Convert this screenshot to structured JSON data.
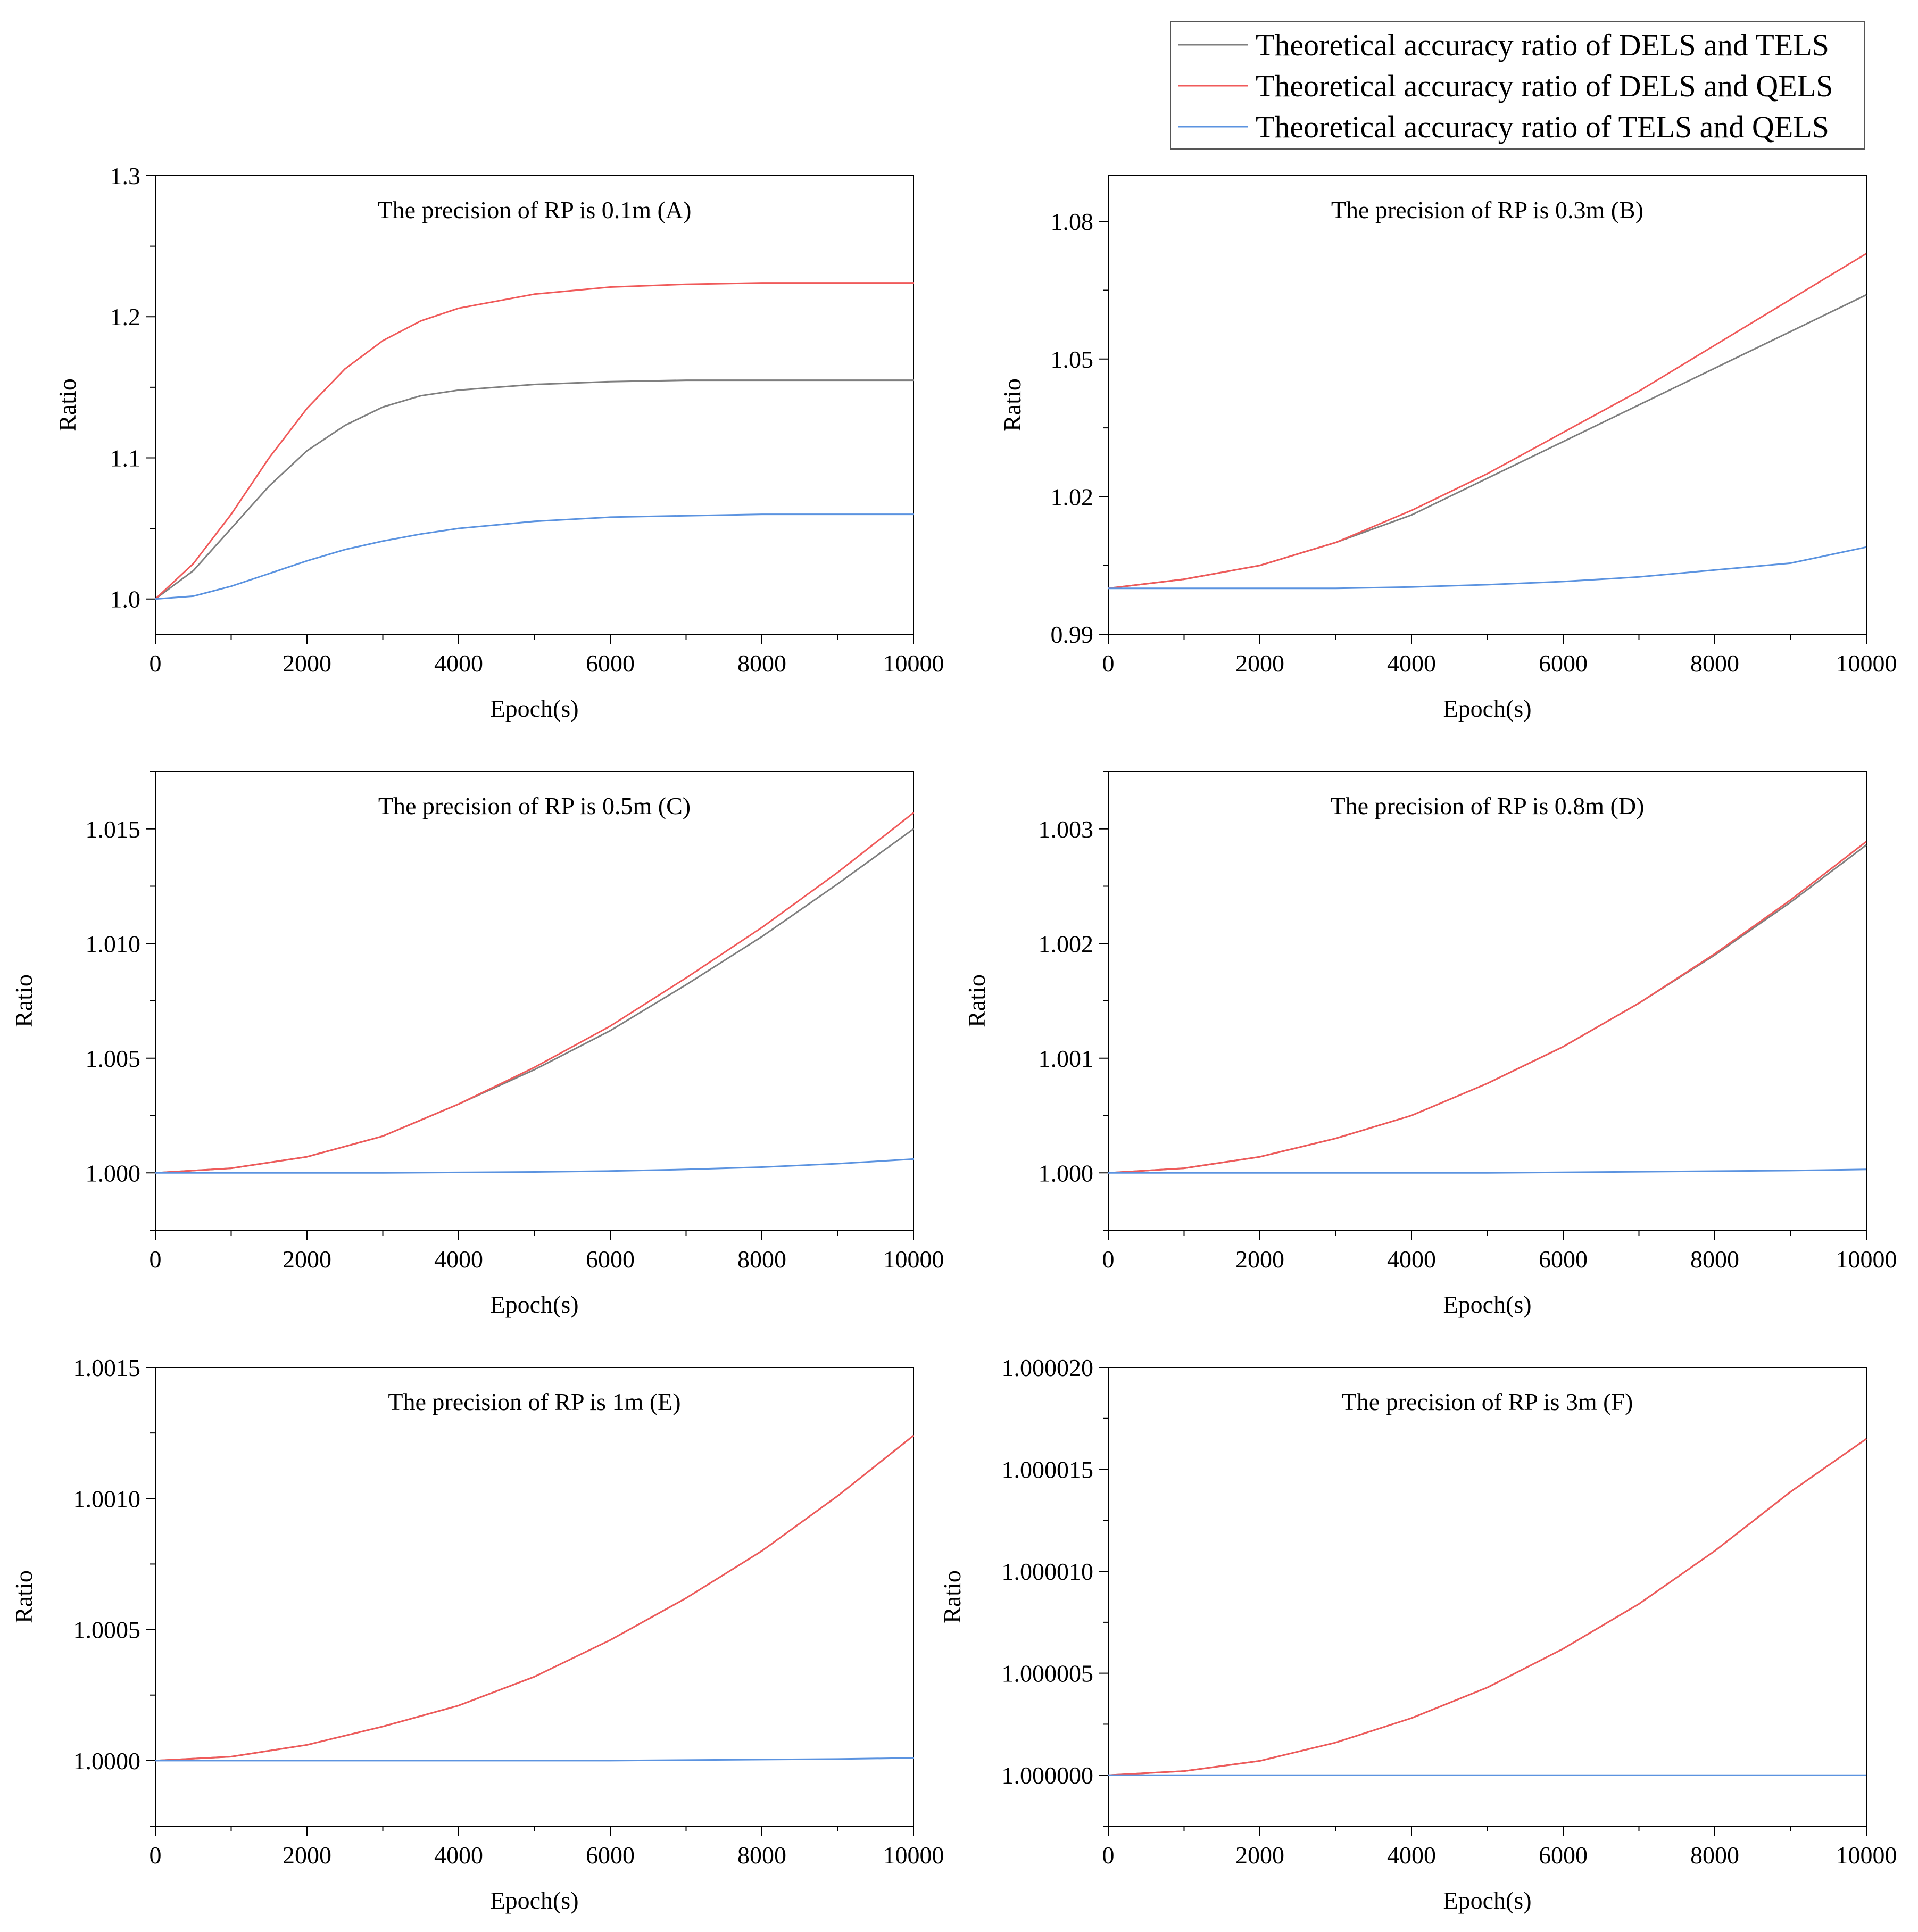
{
  "legend": {
    "entries": [
      {
        "label": "Theoretical accuracy ratio of DELS and TELS",
        "color": "#7f7f7f"
      },
      {
        "label": "Theoretical accuracy ratio of DELS and QELS",
        "color": "#f05a5a"
      },
      {
        "label": "Theoretical accuracy ratio of TELS and QELS",
        "color": "#5b93e0"
      }
    ]
  },
  "chart_data": [
    {
      "panel": "A",
      "type": "line",
      "title": "The precision of RP is 0.1m (A)",
      "xlabel": "Epoch(s)",
      "ylabel": "Ratio",
      "xlim": [
        0,
        10000
      ],
      "ylim": [
        0.975,
        1.3
      ],
      "xticks": [
        0,
        2000,
        4000,
        6000,
        8000,
        10000
      ],
      "xtick_labels": [
        "0",
        "2000",
        "4000",
        "6000",
        "8000",
        "10000"
      ],
      "yticks": [
        1.0,
        1.1,
        1.2,
        1.3
      ],
      "ytick_labels": [
        "1.0",
        "1.1",
        "1.2",
        "1.3"
      ],
      "x": [
        0,
        500,
        1000,
        1500,
        2000,
        2500,
        3000,
        3500,
        4000,
        5000,
        6000,
        7000,
        8000,
        9000,
        10000
      ],
      "series": [
        {
          "name": "DELS/TELS",
          "values": [
            1.0,
            1.02,
            1.05,
            1.08,
            1.105,
            1.123,
            1.136,
            1.144,
            1.148,
            1.152,
            1.154,
            1.155,
            1.155,
            1.155,
            1.155
          ]
        },
        {
          "name": "DELS/QELS",
          "values": [
            1.0,
            1.025,
            1.06,
            1.1,
            1.135,
            1.163,
            1.183,
            1.197,
            1.206,
            1.216,
            1.221,
            1.223,
            1.224,
            1.224,
            1.224
          ]
        },
        {
          "name": "TELS/QELS",
          "values": [
            1.0,
            1.002,
            1.009,
            1.018,
            1.027,
            1.035,
            1.041,
            1.046,
            1.05,
            1.055,
            1.058,
            1.059,
            1.06,
            1.06,
            1.06
          ]
        }
      ]
    },
    {
      "panel": "B",
      "type": "line",
      "title": "The precision of RP is 0.3m (B)",
      "xlabel": "Epoch(s)",
      "ylabel": "Ratio",
      "xlim": [
        0,
        10000
      ],
      "ylim": [
        0.99,
        1.09
      ],
      "xticks": [
        0,
        2000,
        4000,
        6000,
        8000,
        10000
      ],
      "xtick_labels": [
        "0",
        "2000",
        "4000",
        "6000",
        "8000",
        "10000"
      ],
      "yticks": [
        0.99,
        1.02,
        1.05,
        1.08
      ],
      "ytick_labels": [
        "0.99",
        "1.02",
        "1.05",
        "1.08"
      ],
      "x": [
        0,
        1000,
        2000,
        3000,
        4000,
        5000,
        6000,
        7000,
        8000,
        9000,
        10000
      ],
      "series": [
        {
          "name": "DELS/TELS",
          "values": [
            1.0,
            1.002,
            1.005,
            1.01,
            1.016,
            1.024,
            1.032,
            1.04,
            1.048,
            1.056,
            1.064
          ]
        },
        {
          "name": "DELS/QELS",
          "values": [
            1.0,
            1.002,
            1.005,
            1.01,
            1.017,
            1.025,
            1.034,
            1.043,
            1.053,
            1.063,
            1.073
          ]
        },
        {
          "name": "TELS/QELS",
          "values": [
            1.0,
            1.0,
            1.0,
            1.0,
            1.0003,
            1.0008,
            1.0015,
            1.0025,
            1.004,
            1.0055,
            1.009
          ]
        }
      ]
    },
    {
      "panel": "C",
      "type": "line",
      "title": "The precision of RP is 0.5m (C)",
      "xlabel": "Epoch(s)",
      "ylabel": "Ratio",
      "xlim": [
        0,
        10000
      ],
      "ylim": [
        0.9975,
        1.0175
      ],
      "xticks": [
        0,
        2000,
        4000,
        6000,
        8000,
        10000
      ],
      "xtick_labels": [
        "0",
        "2000",
        "4000",
        "6000",
        "8000",
        "10000"
      ],
      "yticks": [
        1.0,
        1.005,
        1.01,
        1.015
      ],
      "ytick_labels": [
        "1.000",
        "1.005",
        "1.010",
        "1.015"
      ],
      "x": [
        0,
        1000,
        2000,
        3000,
        4000,
        5000,
        6000,
        7000,
        8000,
        9000,
        10000
      ],
      "series": [
        {
          "name": "DELS/TELS",
          "values": [
            1.0,
            1.0002,
            1.0007,
            1.0016,
            1.003,
            1.0045,
            1.0062,
            1.0082,
            1.0103,
            1.0126,
            1.015
          ]
        },
        {
          "name": "DELS/QELS",
          "values": [
            1.0,
            1.0002,
            1.0007,
            1.0016,
            1.003,
            1.0046,
            1.0064,
            1.0085,
            1.0107,
            1.0131,
            1.0157
          ]
        },
        {
          "name": "TELS/QELS",
          "values": [
            1.0,
            1.0,
            1.0,
            1.0,
            1.00002,
            1.00004,
            1.00008,
            1.00015,
            1.00025,
            1.0004,
            1.0006
          ]
        }
      ]
    },
    {
      "panel": "D",
      "type": "line",
      "title": "The precision of RP is 0.8m (D)",
      "xlabel": "Epoch(s)",
      "ylabel": "Ratio",
      "xlim": [
        0,
        10000
      ],
      "ylim": [
        0.9995,
        1.0035
      ],
      "xticks": [
        0,
        2000,
        4000,
        6000,
        8000,
        10000
      ],
      "xtick_labels": [
        "0",
        "2000",
        "4000",
        "6000",
        "8000",
        "10000"
      ],
      "yticks": [
        1.0,
        1.001,
        1.002,
        1.003
      ],
      "ytick_labels": [
        "1.000",
        "1.001",
        "1.002",
        "1.003"
      ],
      "x": [
        0,
        1000,
        2000,
        3000,
        4000,
        5000,
        6000,
        7000,
        8000,
        9000,
        10000
      ],
      "series": [
        {
          "name": "DELS/TELS",
          "values": [
            1.0,
            1.00004,
            1.00014,
            1.0003,
            1.0005,
            1.00078,
            1.0011,
            1.00148,
            1.0019,
            1.00236,
            1.00286
          ]
        },
        {
          "name": "DELS/QELS",
          "values": [
            1.0,
            1.00004,
            1.00014,
            1.0003,
            1.0005,
            1.00078,
            1.0011,
            1.00148,
            1.00191,
            1.00238,
            1.00289
          ]
        },
        {
          "name": "TELS/QELS",
          "values": [
            1.0,
            1.0,
            1.0,
            1.0,
            1.0,
            1.0,
            1.000005,
            1.00001,
            1.000015,
            1.00002,
            1.00003
          ]
        }
      ]
    },
    {
      "panel": "E",
      "type": "line",
      "title": "The precision of RP is 1m (E)",
      "xlabel": "Epoch(s)",
      "ylabel": "Ratio",
      "xlim": [
        0,
        10000
      ],
      "ylim": [
        0.99975,
        1.0015
      ],
      "xticks": [
        0,
        2000,
        4000,
        6000,
        8000,
        10000
      ],
      "xtick_labels": [
        "0",
        "2000",
        "4000",
        "6000",
        "8000",
        "10000"
      ],
      "yticks": [
        1.0,
        1.0005,
        1.001,
        1.0015
      ],
      "ytick_labels": [
        "1.0000",
        "1.0005",
        "1.0010",
        "1.0015"
      ],
      "x": [
        0,
        1000,
        2000,
        3000,
        4000,
        5000,
        6000,
        7000,
        8000,
        9000,
        10000
      ],
      "series": [
        {
          "name": "DELS/TELS",
          "values": [
            1.0,
            1.000015,
            1.00006,
            1.00013,
            1.00021,
            1.00032,
            1.00046,
            1.00062,
            1.0008,
            1.00101,
            1.00124
          ]
        },
        {
          "name": "DELS/QELS",
          "values": [
            1.0,
            1.000015,
            1.00006,
            1.00013,
            1.00021,
            1.00032,
            1.00046,
            1.00062,
            1.0008,
            1.00101,
            1.00124
          ]
        },
        {
          "name": "TELS/QELS",
          "values": [
            1.0,
            1.0,
            1.0,
            1.0,
            1.0,
            1.0,
            1.0,
            1.000002,
            1.000004,
            1.000006,
            1.00001
          ]
        }
      ]
    },
    {
      "panel": "F",
      "type": "line",
      "title": "The precision of RP is 3m (F)",
      "xlabel": "Epoch(s)",
      "ylabel": "Ratio",
      "xlim": [
        0,
        10000
      ],
      "ylim": [
        0.9999975,
        1.00002
      ],
      "xticks": [
        0,
        2000,
        4000,
        6000,
        8000,
        10000
      ],
      "xtick_labels": [
        "0",
        "2000",
        "4000",
        "6000",
        "8000",
        "10000"
      ],
      "yticks": [
        1.0,
        1.000005,
        1.00001,
        1.000015,
        1.00002
      ],
      "ytick_labels": [
        "1.000000",
        "1.000005",
        "1.000010",
        "1.000015",
        "1.000020"
      ],
      "x": [
        0,
        1000,
        2000,
        3000,
        4000,
        5000,
        6000,
        7000,
        8000,
        9000,
        10000
      ],
      "series": [
        {
          "name": "DELS/TELS",
          "values": [
            1.0,
            1.0000002,
            1.0000007,
            1.0000016,
            1.0000028,
            1.0000043,
            1.0000062,
            1.0000084,
            1.000011,
            1.0000139,
            1.0000165
          ]
        },
        {
          "name": "DELS/QELS",
          "values": [
            1.0,
            1.0000002,
            1.0000007,
            1.0000016,
            1.0000028,
            1.0000043,
            1.0000062,
            1.0000084,
            1.000011,
            1.0000139,
            1.0000165
          ]
        },
        {
          "name": "TELS/QELS",
          "values": [
            1.0,
            1.0,
            1.0,
            1.0,
            1.0,
            1.0,
            1.0,
            1.0,
            1.0,
            1.0,
            1.0
          ]
        }
      ]
    }
  ]
}
